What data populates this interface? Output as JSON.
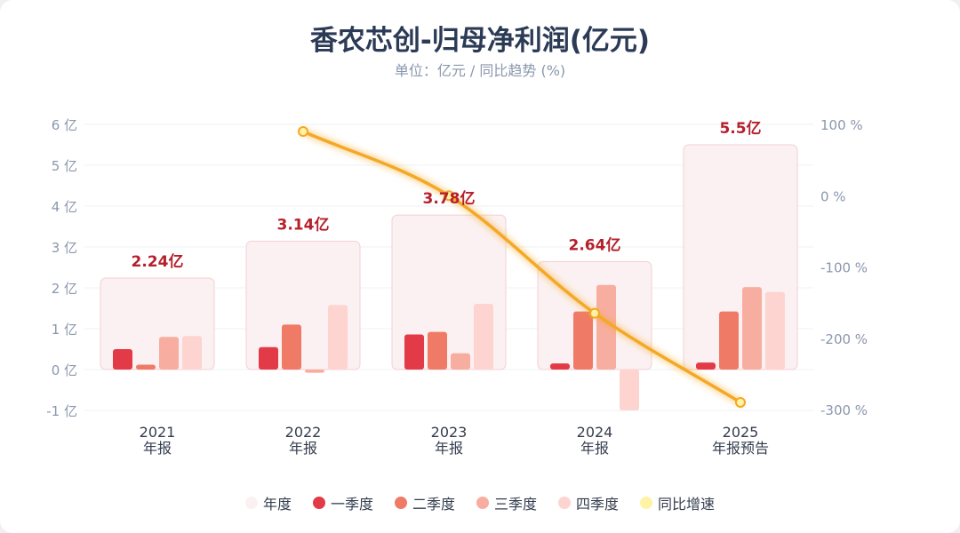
{
  "title": "香农芯创-归母净利润(亿元)",
  "subtitle": "单位：亿元 / 同比趋势 (%)",
  "colors": {
    "annual": "#fbf1f2",
    "annual_border": "#f4cfd3",
    "q1": "#e23a47",
    "q2": "#ef7b66",
    "q3": "#f7aea0",
    "q4": "#fdd4cf",
    "yoy": "#f4a825",
    "yoy_dot": "#fff3a6",
    "value_label": "#b5202c"
  },
  "legend": [
    {
      "key": "annual",
      "label": "年度"
    },
    {
      "key": "q1",
      "label": "一季度"
    },
    {
      "key": "q2",
      "label": "二季度"
    },
    {
      "key": "q3",
      "label": "三季度"
    },
    {
      "key": "q4",
      "label": "四季度"
    },
    {
      "key": "yoy_dot",
      "label": "同比增速"
    }
  ],
  "chart_data": {
    "type": "bar",
    "title": "香农芯创-归母净利润(亿元)",
    "subtitle": "单位：亿元 / 同比趋势 (%)",
    "categories": [
      {
        "year": "2021",
        "sub": "年报"
      },
      {
        "year": "2022",
        "sub": "年报"
      },
      {
        "year": "2023",
        "sub": "年报"
      },
      {
        "year": "2024",
        "sub": "年报"
      },
      {
        "year": "2025",
        "sub": "年报预告"
      }
    ],
    "annual": [
      2.24,
      3.14,
      3.78,
      2.64,
      5.5
    ],
    "annual_labels": [
      "2.24亿",
      "3.14亿",
      "3.78亿",
      "2.64亿",
      "5.5亿"
    ],
    "series": [
      {
        "name": "一季度",
        "key": "q1",
        "values": [
          0.5,
          0.55,
          0.86,
          0.15,
          0.17
        ]
      },
      {
        "name": "二季度",
        "key": "q2",
        "values": [
          0.12,
          1.1,
          0.92,
          1.42,
          1.42
        ]
      },
      {
        "name": "三季度",
        "key": "q3",
        "values": [
          0.8,
          -0.08,
          0.4,
          2.07,
          2.02
        ]
      },
      {
        "name": "四季度",
        "key": "q4",
        "values": [
          0.82,
          1.58,
          1.61,
          -1.0,
          1.9
        ]
      }
    ],
    "yoy": {
      "name": "同比增速",
      "values": [
        null,
        90,
        0,
        -165,
        -290
      ]
    },
    "y_left": {
      "min": -1,
      "max": 6,
      "ticks": [
        -1,
        0,
        1,
        2,
        3,
        4,
        5,
        6
      ],
      "tick_labels": [
        "-1 亿",
        "0 亿",
        "1 亿",
        "2 亿",
        "3 亿",
        "4 亿",
        "5 亿",
        "6 亿"
      ]
    },
    "y_right": {
      "min": -300,
      "max": 100,
      "ticks": [
        -300,
        -200,
        -100,
        0,
        100
      ],
      "tick_labels": [
        "-300 %",
        "-200 %",
        "-100 %",
        "0 %",
        "100 %"
      ]
    },
    "legend_position": "bottom"
  }
}
